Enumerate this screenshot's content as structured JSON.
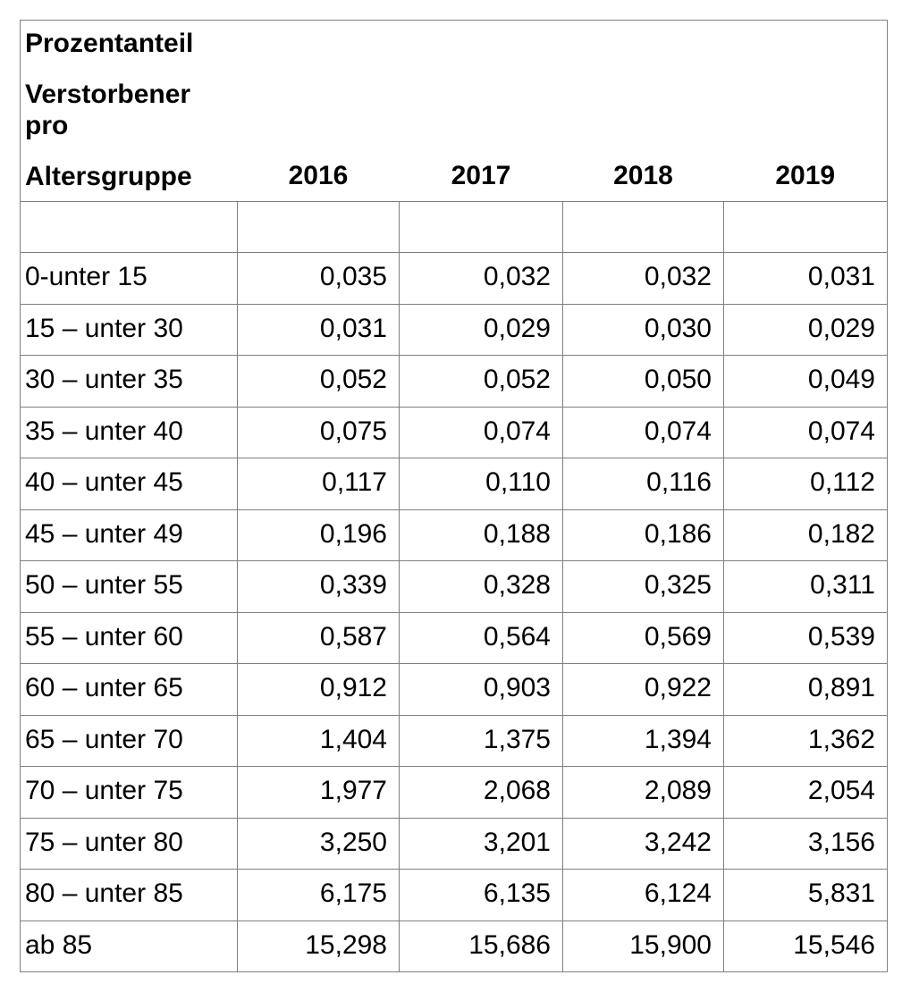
{
  "header": {
    "title_lines": [
      "Prozentanteil",
      "Verstorbener",
      "pro",
      "Altersgruppe"
    ],
    "years": [
      "2016",
      "2017",
      "2018",
      "2019"
    ]
  },
  "rows": [
    {
      "label": "0-unter 15",
      "values": [
        "0,035",
        "0,032",
        "0,032",
        "0,031"
      ]
    },
    {
      "label": "15 – unter 30",
      "values": [
        "0,031",
        "0,029",
        "0,030",
        "0,029"
      ]
    },
    {
      "label": "30 – unter 35",
      "values": [
        "0,052",
        "0,052",
        "0,050",
        "0,049"
      ]
    },
    {
      "label": "35 – unter 40",
      "values": [
        "0,075",
        "0,074",
        "0,074",
        "0,074"
      ]
    },
    {
      "label": "40 – unter 45",
      "values": [
        "0,117",
        "0,110",
        "0,116",
        "0,112"
      ]
    },
    {
      "label": "45 – unter 49",
      "values": [
        "0,196",
        "0,188",
        "0,186",
        "0,182"
      ]
    },
    {
      "label": "50 – unter 55",
      "values": [
        "0,339",
        "0,328",
        "0,325",
        "0,311"
      ]
    },
    {
      "label": "55 – unter 60",
      "values": [
        "0,587",
        "0,564",
        "0,569",
        "0,539"
      ]
    },
    {
      "label": "60 – unter 65",
      "values": [
        "0,912",
        "0,903",
        "0,922",
        "0,891"
      ]
    },
    {
      "label": "65 – unter 70",
      "values": [
        "1,404",
        "1,375",
        "1,394",
        "1,362"
      ]
    },
    {
      "label": "70 – unter 75",
      "values": [
        "1,977",
        "2,068",
        "2,089",
        "2,054"
      ]
    },
    {
      "label": "75 – unter 80",
      "values": [
        "3,250",
        "3,201",
        "3,242",
        "3,156"
      ]
    },
    {
      "label": "80 – unter 85",
      "values": [
        "6,175",
        "6,135",
        "6,124",
        "5,831"
      ]
    },
    {
      "label": "ab 85",
      "values": [
        "15,298",
        "15,686",
        "15,900",
        "15,546"
      ]
    }
  ],
  "colors": {
    "border": "#7f7f7f",
    "text": "#000000",
    "background": "#ffffff"
  },
  "chart_data": {
    "type": "table",
    "title": "Prozentanteil Verstorbener pro Altersgruppe",
    "columns": [
      "Altersgruppe",
      "2016",
      "2017",
      "2018",
      "2019"
    ],
    "categories": [
      "0-unter 15",
      "15 – unter 30",
      "30 – unter 35",
      "35 – unter 40",
      "40 – unter 45",
      "45 – unter 49",
      "50 – unter 55",
      "55 – unter 60",
      "60 – unter 65",
      "65 – unter 70",
      "70 – unter 75",
      "75 – unter 80",
      "80 – unter 85",
      "ab 85"
    ],
    "series": [
      {
        "name": "2016",
        "values": [
          0.035,
          0.031,
          0.052,
          0.075,
          0.117,
          0.196,
          0.339,
          0.587,
          0.912,
          1.404,
          1.977,
          3.25,
          6.175,
          15.298
        ]
      },
      {
        "name": "2017",
        "values": [
          0.032,
          0.029,
          0.052,
          0.074,
          0.11,
          0.188,
          0.328,
          0.564,
          0.903,
          1.375,
          2.068,
          3.201,
          6.135,
          15.686
        ]
      },
      {
        "name": "2018",
        "values": [
          0.032,
          0.03,
          0.05,
          0.074,
          0.116,
          0.186,
          0.325,
          0.569,
          0.922,
          1.394,
          2.089,
          3.242,
          6.124,
          15.9
        ]
      },
      {
        "name": "2019",
        "values": [
          0.031,
          0.029,
          0.049,
          0.074,
          0.112,
          0.182,
          0.311,
          0.539,
          0.891,
          1.362,
          2.054,
          3.156,
          5.831,
          15.546
        ]
      }
    ]
  }
}
